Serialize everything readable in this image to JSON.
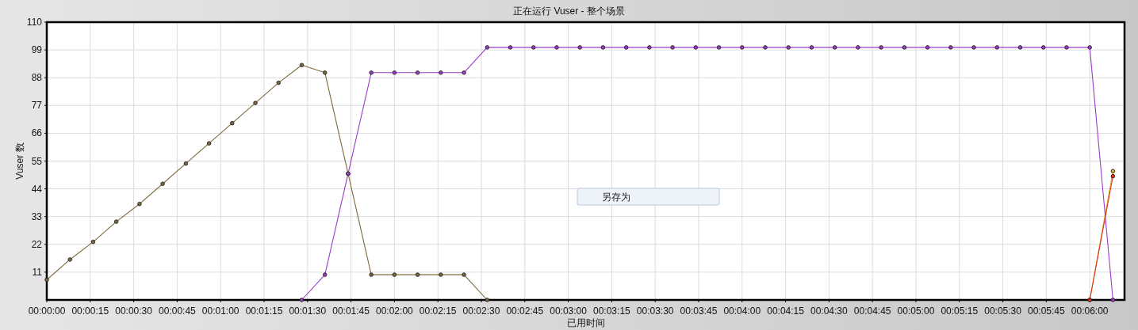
{
  "chart_data": {
    "type": "line",
    "title": "正在运行 Vuser - 整个场景",
    "xlabel": "已用时间",
    "ylabel": "Vuser 数",
    "x": [
      0,
      8,
      16,
      24,
      32,
      40,
      48,
      56,
      64,
      72,
      80,
      88,
      96,
      104,
      112,
      120,
      128,
      136,
      144,
      152,
      160,
      168,
      176,
      184,
      192,
      200,
      208,
      216,
      224,
      232,
      240,
      248,
      256,
      264,
      272,
      280,
      288,
      296,
      304,
      312,
      320,
      328,
      336,
      344,
      352,
      360,
      368
    ],
    "series": [
      {
        "color": "#d8b020",
        "values": [
          null,
          null,
          null,
          null,
          null,
          null,
          null,
          null,
          null,
          null,
          null,
          null,
          null,
          null,
          null,
          null,
          null,
          null,
          null,
          null,
          null,
          null,
          null,
          null,
          null,
          null,
          null,
          null,
          null,
          null,
          null,
          null,
          null,
          null,
          null,
          null,
          null,
          null,
          null,
          null,
          null,
          null,
          null,
          null,
          null,
          0,
          51
        ]
      },
      {
        "color": "#e0301e",
        "values": [
          null,
          null,
          null,
          null,
          null,
          null,
          null,
          null,
          null,
          null,
          null,
          null,
          null,
          null,
          null,
          null,
          null,
          null,
          null,
          null,
          null,
          null,
          null,
          null,
          null,
          null,
          null,
          null,
          null,
          null,
          null,
          null,
          null,
          null,
          null,
          null,
          null,
          null,
          null,
          null,
          null,
          null,
          null,
          null,
          null,
          0,
          49
        ]
      },
      {
        "color": "#7d6a3c",
        "values": [
          8,
          16,
          23,
          31,
          38,
          46,
          54,
          62,
          70,
          78,
          86,
          93,
          90,
          50,
          10,
          10,
          10,
          10,
          10,
          0,
          null,
          null,
          null,
          null,
          null,
          null,
          null,
          null,
          null,
          null,
          null,
          null,
          null,
          null,
          null,
          null,
          null,
          null,
          null,
          null,
          null,
          null,
          null,
          null,
          null,
          null,
          null
        ]
      },
      {
        "color": "#9a3cc8",
        "values": [
          null,
          null,
          null,
          null,
          null,
          null,
          null,
          null,
          null,
          null,
          null,
          0,
          10,
          50,
          90,
          90,
          90,
          90,
          90,
          100,
          100,
          100,
          100,
          100,
          100,
          100,
          100,
          100,
          100,
          100,
          100,
          100,
          100,
          100,
          100,
          100,
          100,
          100,
          100,
          100,
          100,
          100,
          100,
          100,
          100,
          100,
          0
        ]
      }
    ],
    "xlim": [
      0,
      372
    ],
    "ylim": [
      0,
      110
    ],
    "xticks": [
      {
        "value": 0,
        "label": "00:00:00"
      },
      {
        "value": 15,
        "label": "00:00:15"
      },
      {
        "value": 30,
        "label": "00:00:30"
      },
      {
        "value": 45,
        "label": "00:00:45"
      },
      {
        "value": 60,
        "label": "00:01:00"
      },
      {
        "value": 75,
        "label": "00:01:15"
      },
      {
        "value": 90,
        "label": "00:01:30"
      },
      {
        "value": 105,
        "label": "00:01:45"
      },
      {
        "value": 120,
        "label": "00:02:00"
      },
      {
        "value": 135,
        "label": "00:02:15"
      },
      {
        "value": 150,
        "label": "00:02:30"
      },
      {
        "value": 165,
        "label": "00:02:45"
      },
      {
        "value": 180,
        "label": "00:03:00"
      },
      {
        "value": 195,
        "label": "00:03:15"
      },
      {
        "value": 210,
        "label": "00:03:30"
      },
      {
        "value": 225,
        "label": "00:03:45"
      },
      {
        "value": 240,
        "label": "00:04:00"
      },
      {
        "value": 255,
        "label": "00:04:15"
      },
      {
        "value": 270,
        "label": "00:04:30"
      },
      {
        "value": 285,
        "label": "00:04:45"
      },
      {
        "value": 300,
        "label": "00:05:00"
      },
      {
        "value": 315,
        "label": "00:05:15"
      },
      {
        "value": 330,
        "label": "00:05:30"
      },
      {
        "value": 345,
        "label": "00:05:45"
      },
      {
        "value": 360,
        "label": "00:06:00"
      }
    ],
    "yticks": [
      11,
      22,
      33,
      44,
      55,
      66,
      77,
      88,
      99,
      110
    ],
    "grid": true,
    "marker": "circle",
    "line_style": "solid",
    "annotations": [
      "另存为"
    ]
  }
}
